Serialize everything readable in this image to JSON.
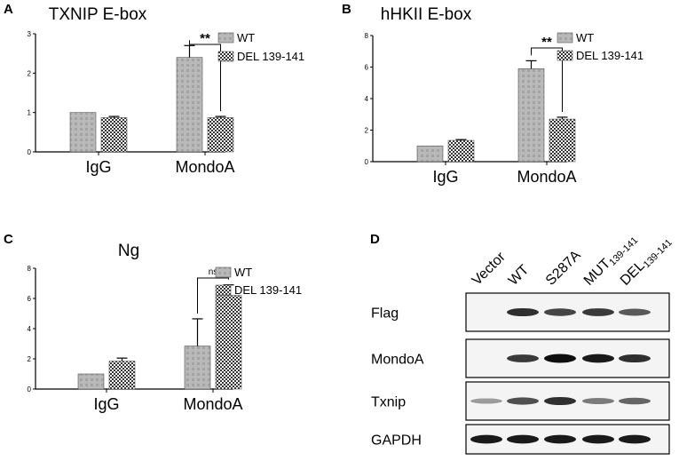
{
  "panels": {
    "A": "A",
    "B": "B",
    "C": "C",
    "D": "D"
  },
  "legend": {
    "wt": "WT",
    "del": "DEL 139-141"
  },
  "chart_data": [
    {
      "type": "bar",
      "title": "TXNIP E-box",
      "categories": [
        "IgG",
        "MondoA"
      ],
      "series": [
        {
          "name": "WT",
          "values": [
            1.0,
            2.4
          ],
          "errors": [
            0,
            0.3
          ]
        },
        {
          "name": "DEL 139-141",
          "values": [
            0.87,
            0.87
          ],
          "errors": [
            0.03,
            0.03
          ]
        }
      ],
      "ylim": [
        0,
        3
      ],
      "yticks": [
        "0",
        "1",
        "2",
        "3"
      ],
      "significance": {
        "category": "MondoA",
        "label": "**"
      }
    },
    {
      "type": "bar",
      "title": "hHKII E-box",
      "categories": [
        "IgG",
        "MondoA"
      ],
      "series": [
        {
          "name": "WT",
          "values": [
            1.0,
            5.9
          ],
          "errors": [
            0,
            0.5
          ]
        },
        {
          "name": "DEL 139-141",
          "values": [
            1.35,
            2.7
          ],
          "errors": [
            0.05,
            0.12
          ]
        }
      ],
      "ylim": [
        0,
        8
      ],
      "yticks": [
        "0",
        "2",
        "4",
        "6",
        "8"
      ],
      "significance": {
        "category": "MondoA",
        "label": "**"
      }
    },
    {
      "type": "bar",
      "title": "Ng",
      "categories": [
        "IgG",
        "MondoA"
      ],
      "series": [
        {
          "name": "WT",
          "values": [
            1.0,
            2.85
          ],
          "errors": [
            0,
            1.8
          ]
        },
        {
          "name": "DEL 139-141",
          "values": [
            1.85,
            6.2
          ],
          "errors": [
            0.2,
            0.7
          ]
        }
      ],
      "ylim": [
        0,
        8
      ],
      "yticks": [
        "0",
        "2",
        "4",
        "6",
        "8"
      ],
      "significance": {
        "category": "MondoA",
        "label": "ns"
      }
    }
  ],
  "blot": {
    "lanes": [
      {
        "main": "Vector",
        "sub": ""
      },
      {
        "main": "WT",
        "sub": ""
      },
      {
        "main": "S287A",
        "sub": ""
      },
      {
        "main": "MUT",
        "sub": "139-141"
      },
      {
        "main": "DEL",
        "sub": "139-141"
      }
    ],
    "rows": [
      {
        "label": "Flag",
        "intensity": [
          0,
          0.85,
          0.75,
          0.8,
          0.65
        ]
      },
      {
        "label": "MondoA",
        "intensity": [
          0,
          0.8,
          1.0,
          0.95,
          0.85
        ]
      },
      {
        "label": "Txnip",
        "intensity": [
          0.35,
          0.7,
          0.85,
          0.5,
          0.6
        ]
      },
      {
        "label": "GAPDH",
        "intensity": [
          0.95,
          0.95,
          0.95,
          0.95,
          0.95
        ]
      }
    ]
  }
}
